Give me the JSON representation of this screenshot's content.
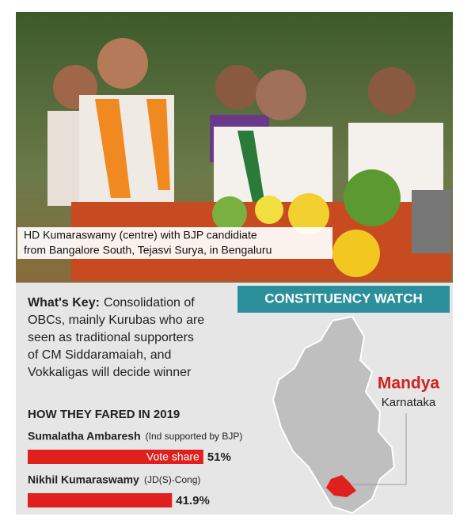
{
  "photo": {
    "caption": [
      "HD Kumaraswamy (centre) with BJP candidiate",
      "from Bangalore South, Tejasvi Surya, in Bengaluru"
    ]
  },
  "banner": "CONSTITUENCY WATCH",
  "key": {
    "label": "What's Key:",
    "lines": [
      "Consolidation of",
      "OBCs, mainly Kurubas who are",
      "seen as traditional supporters",
      "of CM Siddaramaiah, and",
      "Vokkaligas will decide winner"
    ]
  },
  "section_title": "HOW THEY FARED IN 2019",
  "bar_label": "Vote share",
  "results": [
    {
      "name": "Sumalatha Ambaresh",
      "party": "(Ind supported by BJP)",
      "value": 51,
      "value_label": "51%"
    },
    {
      "name": "Nikhil Kumaraswamy",
      "party": "(JD(S)-Cong)",
      "value": 41.9,
      "value_label": "41.9%"
    }
  ],
  "map": {
    "constituency": "Mandya",
    "state": "Karnataka"
  }
}
